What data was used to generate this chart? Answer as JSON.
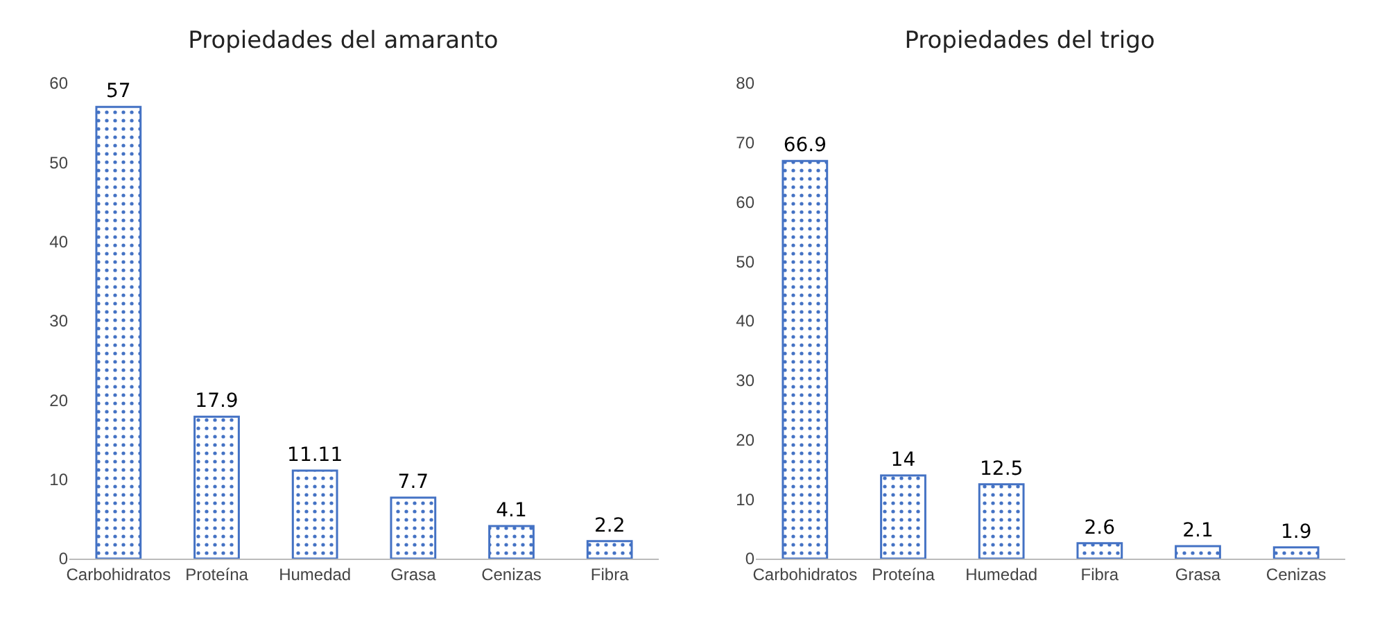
{
  "chart_data": [
    {
      "type": "bar",
      "title": "Propiedades del amaranto",
      "categories": [
        "Carbohidratos",
        "Proteína",
        "Humedad",
        "Grasa",
        "Cenizas",
        "Fibra"
      ],
      "values": [
        57,
        17.9,
        11.11,
        7.7,
        4.1,
        2.2
      ],
      "color": "#4472c4",
      "ylim": [
        0,
        60
      ],
      "yticks": [
        0,
        10,
        20,
        30,
        40,
        50,
        60
      ],
      "grid": false,
      "data_labels": true
    },
    {
      "type": "bar",
      "title": "Propiedades del trigo",
      "categories": [
        "Carbohidratos",
        "Proteína",
        "Humedad",
        "Fibra",
        "Grasa",
        "Cenizas"
      ],
      "values": [
        66.9,
        14,
        12.5,
        2.6,
        2.1,
        1.9
      ],
      "color": "#4472c4",
      "ylim": [
        0,
        80
      ],
      "yticks": [
        0,
        10,
        20,
        30,
        40,
        50,
        60,
        70,
        80
      ],
      "grid": false,
      "data_labels": true
    }
  ]
}
